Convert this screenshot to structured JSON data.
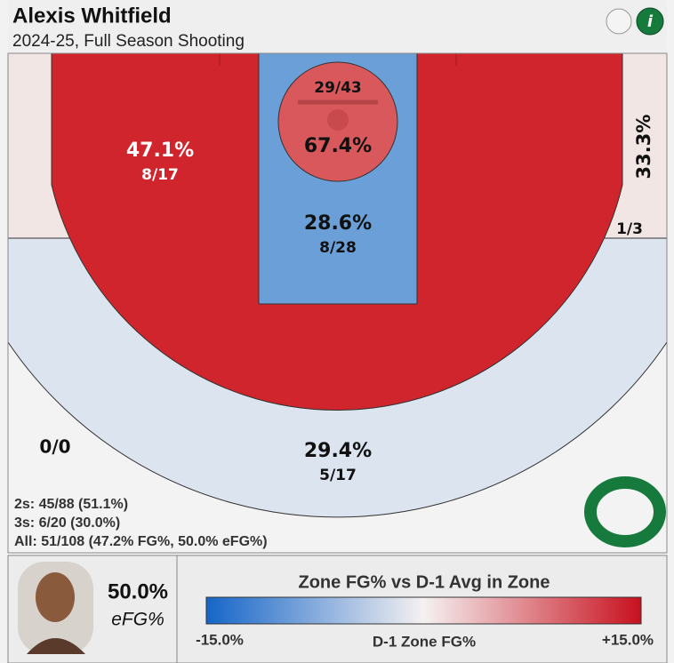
{
  "header": {
    "title": "Alexis Whitfield",
    "subtitle": "2024-25, Full Season Shooting"
  },
  "zones": {
    "midrange": {
      "fg_pct": "47.1%",
      "made_att": "8/17"
    },
    "right_corner_three": {
      "fg_pct": "33.3%",
      "made_att": "1/3"
    },
    "paint": {
      "fg_pct": "28.6%",
      "made_att": "8/28"
    },
    "restricted_area": {
      "fg_pct": "67.4%",
      "made_att": "29/43"
    },
    "left_corner_three": {
      "made_att": "0/0"
    },
    "above_break_three": {
      "fg_pct": "29.4%",
      "made_att": "5/17"
    }
  },
  "summary": {
    "twos": "2s: 45/88 (51.1%)",
    "threes": "3s: 6/20 (30.0%)",
    "all": "All: 51/108 (47.2% FG%, 50.0% eFG%)"
  },
  "footer": {
    "efg_value": "50.0%",
    "efg_label": "eFG%",
    "legend_title": "Zone FG% vs D-1 Avg in Zone",
    "legend_min": "-15.0%",
    "legend_axis": "D-1 Zone FG%",
    "legend_max": "+15.0%"
  }
}
